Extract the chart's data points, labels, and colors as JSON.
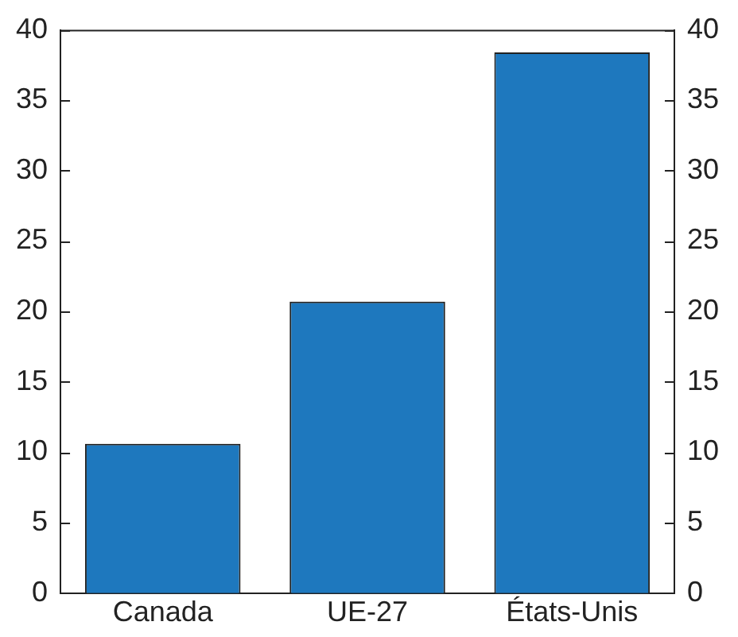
{
  "chart_data": {
    "type": "bar",
    "categories": [
      "Canada",
      "UE-27",
      "États-Unis"
    ],
    "values": [
      10.6,
      20.7,
      38.4
    ],
    "color": "#1e78be",
    "ylim": [
      0,
      40
    ],
    "yticks": [
      0,
      5,
      10,
      15,
      20,
      25,
      30,
      35,
      40
    ],
    "y2lim": [
      0,
      40
    ],
    "y2ticks": [
      0,
      5,
      10,
      15,
      20,
      25,
      30,
      35,
      40
    ],
    "grid": false,
    "legend": false
  }
}
